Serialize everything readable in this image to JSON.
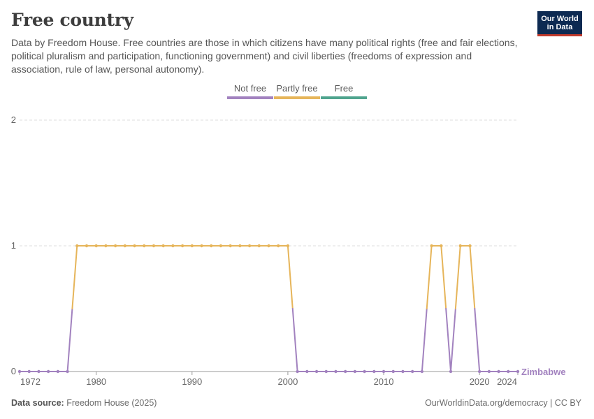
{
  "header": {
    "title": "Free country",
    "subtitle": "Data by Freedom House. Free countries are those in which citizens have many political rights (free and fair elections, political pluralism and participation, functioning government) and civil liberties (freedoms of expression and association, rule of law, personal autonomy).",
    "logo_line1": "Our World",
    "logo_line2": "in Data"
  },
  "footer": {
    "source_label": "Data source:",
    "source_value": "Freedom House (2025)",
    "credit": "OurWorldinData.org/democracy | CC BY"
  },
  "colors": {
    "not_free": "#a282bf",
    "partly_free": "#e6b55a",
    "free": "#4fa48e",
    "grid": "#dddddd",
    "axis": "#999999",
    "entity_label": "#a282bf"
  },
  "chart_data": {
    "type": "line",
    "title": "Free country",
    "entity": "Zimbabwe",
    "xlabel": "",
    "ylabel": "",
    "xlim": [
      1972,
      2024
    ],
    "ylim": [
      0,
      2
    ],
    "x_ticks": [
      1972,
      1980,
      1990,
      2000,
      2010,
      2020,
      2024
    ],
    "y_ticks": [
      0,
      1,
      2
    ],
    "grid": true,
    "legend_position": "top-center",
    "legend": [
      {
        "label": "Not free",
        "color": "#a282bf"
      },
      {
        "label": "Partly free",
        "color": "#e6b55a"
      },
      {
        "label": "Free",
        "color": "#4fa48e"
      }
    ],
    "category_colors": {
      "0": "#a282bf",
      "1": "#e6b55a",
      "2": "#4fa48e"
    },
    "series": [
      {
        "name": "Zimbabwe",
        "x": [
          1972,
          1973,
          1974,
          1975,
          1976,
          1977,
          1978,
          1979,
          1980,
          1981,
          1982,
          1983,
          1984,
          1985,
          1986,
          1987,
          1988,
          1989,
          1990,
          1991,
          1992,
          1993,
          1994,
          1995,
          1996,
          1997,
          1998,
          1999,
          2000,
          2001,
          2002,
          2003,
          2004,
          2005,
          2006,
          2007,
          2008,
          2009,
          2010,
          2011,
          2012,
          2013,
          2014,
          2015,
          2016,
          2017,
          2018,
          2019,
          2020,
          2021,
          2022,
          2023,
          2024
        ],
        "values": [
          0,
          0,
          0,
          0,
          0,
          0,
          1,
          1,
          1,
          1,
          1,
          1,
          1,
          1,
          1,
          1,
          1,
          1,
          1,
          1,
          1,
          1,
          1,
          1,
          1,
          1,
          1,
          1,
          1,
          0,
          0,
          0,
          0,
          0,
          0,
          0,
          0,
          0,
          0,
          0,
          0,
          0,
          0,
          1,
          1,
          0,
          1,
          1,
          0,
          0,
          0,
          0,
          0
        ]
      }
    ]
  }
}
